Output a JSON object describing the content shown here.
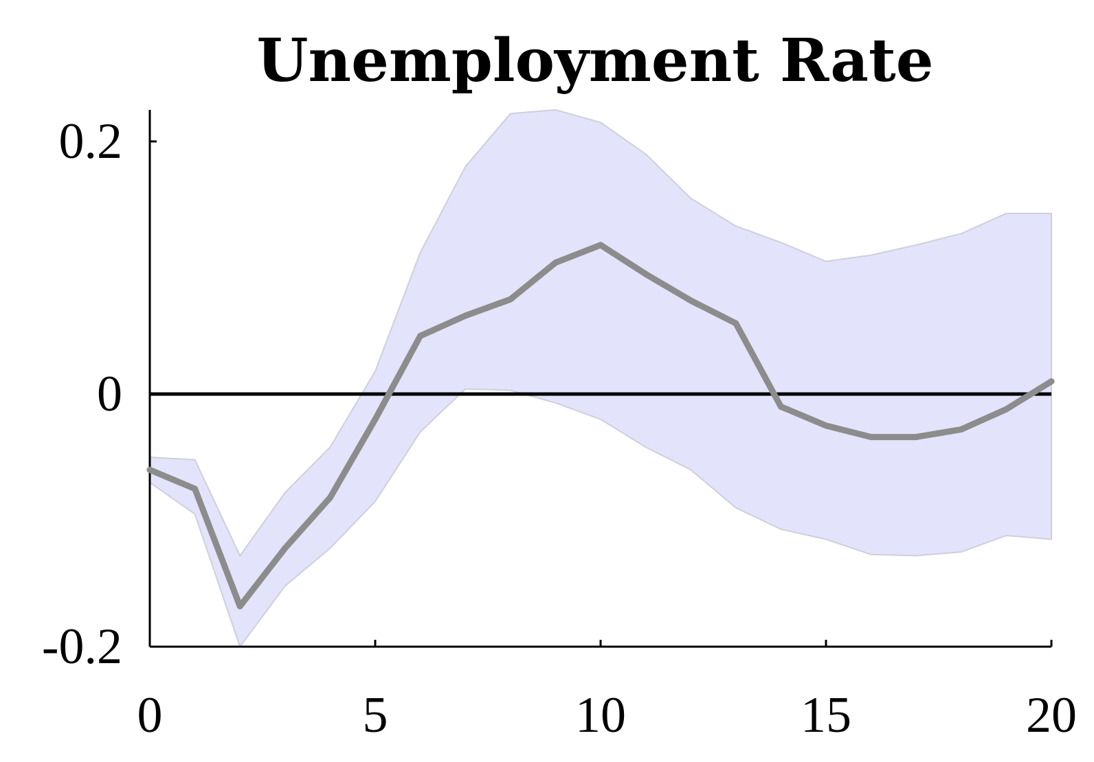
{
  "chart_data": {
    "type": "line",
    "title": "Unemployment Rate",
    "xlabel": "",
    "ylabel": "",
    "xlim": [
      0,
      20
    ],
    "ylim": [
      -0.2,
      0.22
    ],
    "x_ticks": [
      0,
      5,
      10,
      15,
      20
    ],
    "x_tick_labels": [
      "0",
      "5",
      "10",
      "15",
      "20"
    ],
    "y_ticks": [
      -0.2,
      0,
      0.2
    ],
    "y_tick_labels": [
      "-0.2",
      "0",
      "0.2"
    ],
    "grid": false,
    "reference_line": 0,
    "x": [
      0,
      1,
      2,
      3,
      4,
      5,
      6,
      7,
      8,
      9,
      10,
      11,
      12,
      13,
      14,
      15,
      16,
      17,
      18,
      19,
      20
    ],
    "series": [
      {
        "role": "estimate",
        "color": "#8c8c8c",
        "values": [
          -0.06,
          -0.075,
          -0.168,
          -0.122,
          -0.082,
          -0.02,
          0.046,
          0.062,
          0.075,
          0.104,
          0.118,
          0.095,
          0.074,
          0.056,
          -0.01,
          -0.025,
          -0.034,
          -0.034,
          -0.028,
          -0.012,
          0.01
        ]
      }
    ],
    "band": {
      "color": "#e3e3fb",
      "edge_color": "#cfcfdc",
      "upper": [
        -0.05,
        -0.052,
        -0.128,
        -0.078,
        -0.042,
        0.018,
        0.112,
        0.18,
        0.222,
        0.225,
        0.215,
        0.19,
        0.155,
        0.133,
        0.12,
        0.105,
        0.11,
        0.118,
        0.127,
        0.143,
        0.143
      ],
      "lower": [
        -0.07,
        -0.095,
        -0.2,
        -0.152,
        -0.122,
        -0.085,
        -0.03,
        0.004,
        0.003,
        -0.007,
        -0.02,
        -0.042,
        -0.06,
        -0.09,
        -0.107,
        -0.115,
        -0.127,
        -0.128,
        -0.125,
        -0.112,
        -0.115
      ]
    }
  }
}
